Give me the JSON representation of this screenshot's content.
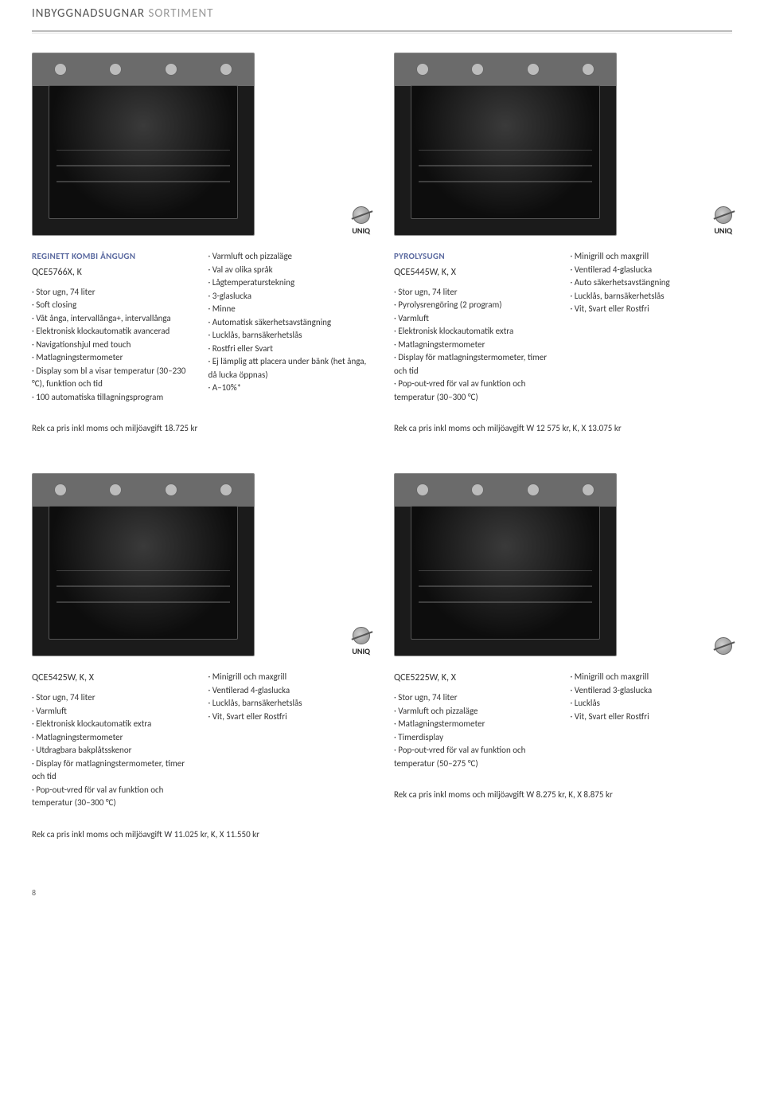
{
  "page_title_strong": "INBYGGNADSUGNAR",
  "page_title_light": "SORTIMENT",
  "uniq_label": "UNIQ",
  "page_number": "8",
  "products": [
    {
      "header": "REGINETT KOMBI ÅNGUGN",
      "model": "QCE5766X, K",
      "col1": [
        "Stor ugn, 74 liter",
        "Soft closing",
        "Våt ånga, intervallånga+, intervallånga",
        "Elektronisk klockautomatik avancerad",
        "Navigationshjul med touch",
        "Matlagningstermometer",
        "Display som bl a visar temperatur (30–230 °C), funktion och tid",
        "100 automatiska tillagnings­program"
      ],
      "col2": [
        "Varmluft och pizzaläge",
        "Val av olika språk",
        "Lågtemperaturstekning",
        "3-glaslucka",
        "Minne",
        "Automatisk säkerhets­avstängning",
        "Lucklås, barnsäkerhetslås",
        "Rostfri eller Svart",
        "Ej lämplig att placera under bänk (het ånga, då lucka öppnas)",
        "A–10%*"
      ],
      "price": "Rek ca pris inkl moms och miljöavgift 18.725 kr"
    },
    {
      "header": "PYROLYSUGN",
      "model": "QCE5445W, K, X",
      "col1": [
        "Stor ugn, 74 liter",
        "Pyrolysrengöring (2 program)",
        "Varmluft",
        "Elektronisk klockautomatik extra",
        "Matlagningstermometer",
        "Display för matlagnings­termometer, timer och tid",
        "Pop-out-vred för val av funktion och temperatur (30–300 °C)"
      ],
      "col2": [
        "Minigrill och maxgrill",
        "Ventilerad 4-glaslucka",
        "Auto säkerhetsavstängning",
        "Lucklås, barnsäkerhetslås",
        "Vit, Svart eller Rostfri"
      ],
      "price": "Rek ca pris inkl moms och miljöavgift W 12 575 kr, K, X 13.075 kr"
    },
    {
      "header": "",
      "model": "QCE5425W, K, X",
      "col1": [
        "Stor ugn, 74 liter",
        "Varmluft",
        "Elektronisk klockautomatik extra",
        "Matlagningstermometer",
        "Utdragbara bakplåtsskenor",
        "Display för matlagnings­termometer, timer och tid",
        "Pop-out-vred för val av funktion och temperatur (30–300 °C)"
      ],
      "col2": [
        "Minigrill och maxgrill",
        "Ventilerad 4-glaslucka",
        "Lucklås, barnsäkerhetslås",
        "Vit, Svart eller Rostfri"
      ],
      "price": "Rek ca pris inkl moms och miljöavgift W 11.025 kr, K, X 11.550 kr"
    },
    {
      "header": "",
      "model": "QCE5225W, K, X",
      "col1": [
        "Stor ugn, 74 liter",
        "Varmluft och pizzaläge",
        "Matlagningstermometer",
        "Timerdisplay",
        "Pop-out-vred för val av funktion och temperatur (50–275 °C)"
      ],
      "col2": [
        "Minigrill och maxgrill",
        "Ventilerad 3-glaslucka",
        "Lucklås",
        "Vit, Svart eller Rostfri"
      ],
      "price": "Rek ca pris inkl moms och miljöavgift W 8.275 kr, K, X 8.875 kr"
    }
  ]
}
